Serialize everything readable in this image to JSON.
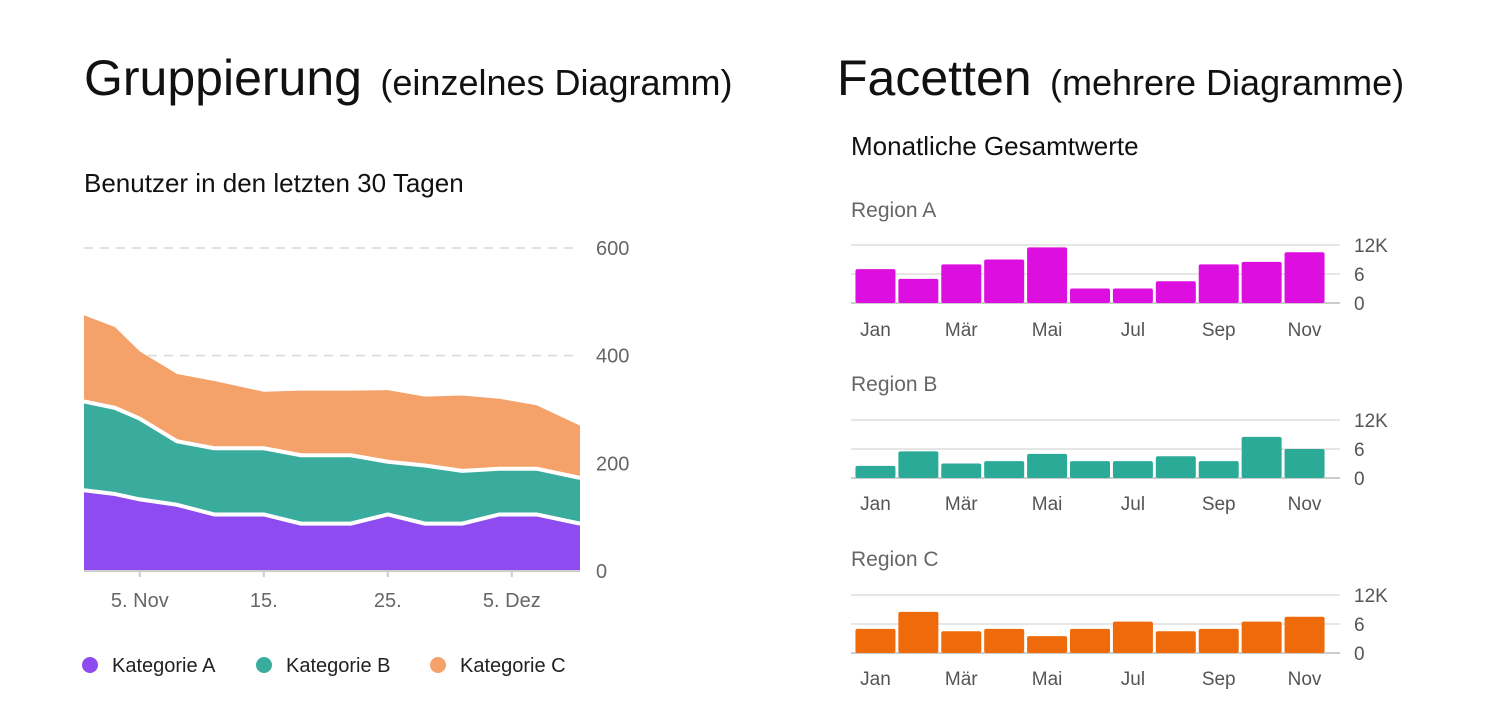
{
  "headings": {
    "left_main": "Gruppierung",
    "left_sub": "(einzelnes Diagramm)",
    "right_main": "Facetten",
    "right_sub": "(mehrere Diagramme)"
  },
  "colors": {
    "kategorie_a": "#8e4cf0",
    "kategorie_b": "#3aac9e",
    "kategorie_c": "#f4a16a",
    "region_a": "#dd0ee0",
    "region_b": "#2baa98",
    "region_c": "#ef6a0a",
    "grid": "#d8d8d8",
    "axis": "#cccccc"
  },
  "chart_data": [
    {
      "type": "area",
      "stacked": true,
      "title": "Benutzer in den letzten 30 Tagen",
      "x_tick_labels": [
        "5. Nov",
        "15.",
        "25.",
        "5. Dez"
      ],
      "x_tick_positions": [
        3,
        13,
        23,
        33
      ],
      "x_range": [
        -1.5,
        38.5
      ],
      "y_ticks": [
        0,
        200,
        400,
        600
      ],
      "y_tick_labels": [
        "0",
        "200",
        "400",
        "600"
      ],
      "ylim": [
        0,
        600
      ],
      "x": [
        -1.5,
        1,
        3,
        6,
        9,
        13,
        16,
        20,
        23,
        26,
        29,
        32,
        35,
        38.5
      ],
      "series": [
        {
          "name": "Kategorie A",
          "color_key": "kategorie_a",
          "values": [
            150,
            143,
            133,
            123,
            105,
            105,
            88,
            88,
            105,
            88,
            88,
            105,
            105,
            88
          ]
        },
        {
          "name": "Kategorie B",
          "color_key": "kategorie_b",
          "values": [
            165,
            160,
            150,
            118,
            123,
            123,
            127,
            127,
            98,
            108,
            98,
            85,
            85,
            85
          ]
        },
        {
          "name": "Kategorie C",
          "color_key": "kategorie_c",
          "values": [
            160,
            150,
            125,
            125,
            125,
            105,
            120,
            120,
            133,
            128,
            140,
            130,
            118,
            97
          ]
        }
      ],
      "legend": [
        "Kategorie A",
        "Kategorie B",
        "Kategorie C"
      ],
      "legend_position": "bottom"
    },
    {
      "type": "bar",
      "title": "Monatliche Gesamtwerte",
      "facets": [
        {
          "label": "Region A",
          "color_key": "region_a",
          "values": [
            7,
            5,
            8,
            9,
            11.5,
            3,
            3,
            4.5,
            8,
            8.5,
            10.5
          ]
        },
        {
          "label": "Region B",
          "color_key": "region_b",
          "values": [
            2.5,
            5.5,
            3,
            3.5,
            5,
            3.5,
            3.5,
            4.5,
            3.5,
            8.5,
            6
          ]
        },
        {
          "label": "Region C",
          "color_key": "region_c",
          "values": [
            5,
            8.5,
            4.5,
            5,
            3.5,
            5,
            6.5,
            4.5,
            5,
            6.5,
            7.5
          ]
        }
      ],
      "x_tick_labels": [
        "Jan",
        "Mär",
        "Mai",
        "Jul",
        "Sep",
        "Nov"
      ],
      "x_tick_indices": [
        0,
        2,
        4,
        6,
        8,
        10
      ],
      "y_tick_labels": [
        "0",
        "6",
        "12K"
      ],
      "y_ticks": [
        0,
        6,
        12
      ],
      "ylim": [
        0,
        12
      ]
    }
  ]
}
